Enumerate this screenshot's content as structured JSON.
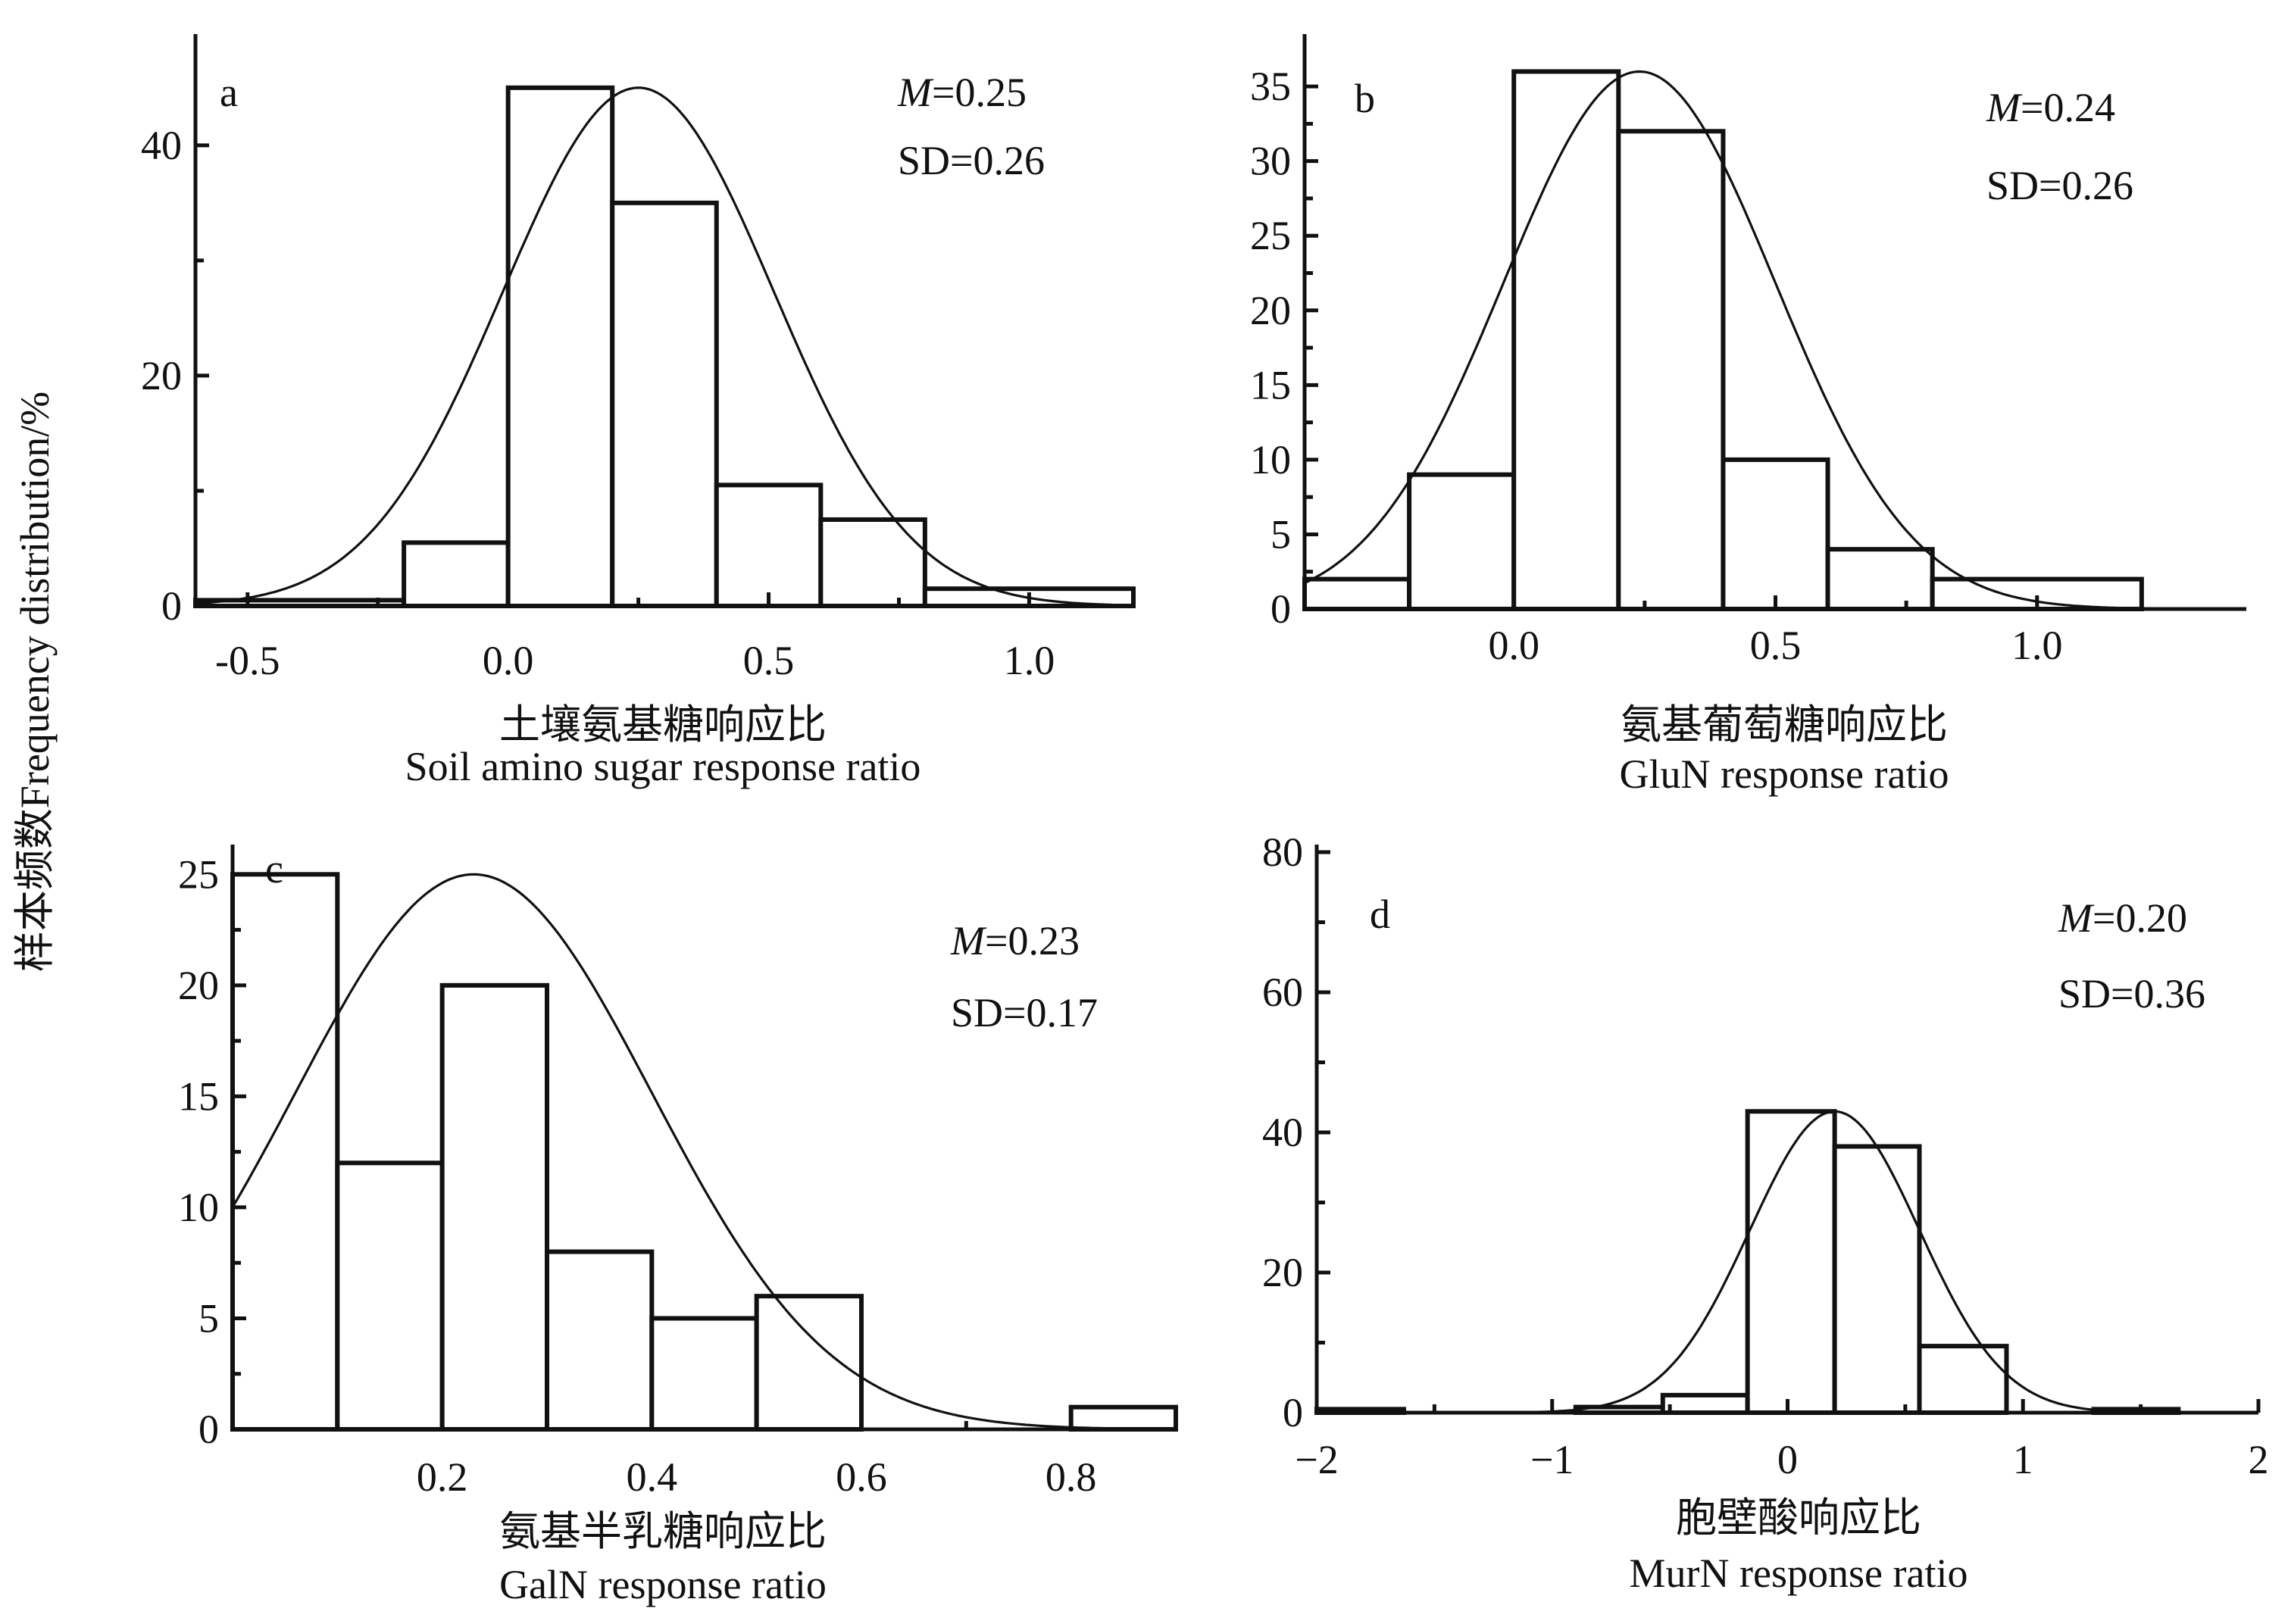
{
  "y_axis_label": "样本频数Frequency distribution/%",
  "chart_data": [
    {
      "id": "a",
      "type": "bar",
      "panel_letter": "a",
      "mean_prefix": "M",
      "mean_value": "=0.25",
      "sd_text": "SD=0.26",
      "xlabel_cn": "土壤氨基糖响应比",
      "xlabel_en": "Soil amino sugar response ratio",
      "xlim": [
        -0.6,
        1.2
      ],
      "ylim": [
        0,
        49
      ],
      "xticks": [
        -0.5,
        0.0,
        0.5,
        1.0
      ],
      "xtick_labels": [
        "-0.5",
        "0.0",
        "0.5",
        "1.0"
      ],
      "yticks": [
        0,
        20,
        40
      ],
      "ytick_labels": [
        "0",
        "20",
        "40"
      ],
      "bins": [
        [
          -0.6,
          -0.2
        ],
        [
          -0.2,
          0.0
        ],
        [
          0.0,
          0.2
        ],
        [
          0.2,
          0.4
        ],
        [
          0.4,
          0.6
        ],
        [
          0.6,
          0.8
        ],
        [
          0.8,
          1.2
        ]
      ],
      "values": [
        0.5,
        5.5,
        45,
        35,
        10.5,
        7.5,
        1.5
      ],
      "normal_peak": 45,
      "mean": 0.25,
      "sd": 0.26
    },
    {
      "id": "b",
      "type": "bar",
      "panel_letter": "b",
      "mean_prefix": "M",
      "mean_value": "=0.24",
      "sd_text": "SD=0.26",
      "xlabel_cn": "氨基葡萄糖响应比",
      "xlabel_en": "GluN response ratio",
      "xlim": [
        -0.4,
        1.4
      ],
      "ylim": [
        0,
        38
      ],
      "xticks": [
        0.0,
        0.5,
        1.0
      ],
      "xtick_labels": [
        "0.0",
        "0.5",
        "1.0"
      ],
      "yticks": [
        0,
        5,
        10,
        15,
        20,
        25,
        30,
        35
      ],
      "ytick_labels": [
        "0",
        "5",
        "10",
        "15",
        "20",
        "25",
        "30",
        "35"
      ],
      "bins": [
        [
          -0.4,
          -0.2
        ],
        [
          -0.2,
          0.0
        ],
        [
          0.0,
          0.2
        ],
        [
          0.2,
          0.4
        ],
        [
          0.4,
          0.6
        ],
        [
          0.6,
          0.8
        ],
        [
          0.8,
          1.2
        ]
      ],
      "values": [
        2,
        9,
        36,
        32,
        10,
        4,
        2
      ],
      "normal_peak": 36,
      "mean": 0.24,
      "sd": 0.26
    },
    {
      "id": "c",
      "type": "bar",
      "panel_letter": "c",
      "mean_prefix": "M",
      "mean_value": "=0.23",
      "sd_text": "SD=0.17",
      "xlabel_cn": "氨基半乳糖响应比",
      "xlabel_en": "GalN response ratio",
      "xlim": [
        0.0,
        0.9
      ],
      "ylim": [
        0,
        26
      ],
      "xticks": [
        0.2,
        0.4,
        0.6,
        0.8
      ],
      "xtick_labels": [
        "0.2",
        "0.4",
        "0.6",
        "0.8"
      ],
      "yticks": [
        0,
        5,
        10,
        15,
        20,
        25
      ],
      "ytick_labels": [
        "0",
        "5",
        "10",
        "15",
        "20",
        "25"
      ],
      "bins": [
        [
          0.0,
          0.1
        ],
        [
          0.1,
          0.2
        ],
        [
          0.2,
          0.3
        ],
        [
          0.3,
          0.4
        ],
        [
          0.4,
          0.5
        ],
        [
          0.5,
          0.6
        ],
        [
          0.8,
          0.9
        ]
      ],
      "values": [
        25,
        12,
        20,
        8,
        5,
        6,
        1
      ],
      "normal_peak": 25,
      "mean": 0.23,
      "sd": 0.17
    },
    {
      "id": "d",
      "type": "bar",
      "panel_letter": "d",
      "mean_prefix": "M",
      "mean_value": "=0.20",
      "sd_text": "SD=0.36",
      "xlabel_cn": "胞壁酸响应比",
      "xlabel_en": "MurN response ratio",
      "xlim": [
        -2,
        2
      ],
      "ylim": [
        0,
        80
      ],
      "xticks": [
        -2,
        -1,
        0,
        1,
        2
      ],
      "xtick_labels": [
        "−2",
        "−1",
        "0",
        "1",
        "2"
      ],
      "yticks": [
        0,
        20,
        40,
        60,
        80
      ],
      "ytick_labels": [
        "0",
        "20",
        "40",
        "60",
        "80"
      ],
      "bins": [
        [
          -2.0,
          -1.63
        ],
        [
          -0.9,
          -0.53
        ],
        [
          -0.53,
          -0.17
        ],
        [
          -0.17,
          0.2
        ],
        [
          0.2,
          0.56
        ],
        [
          0.56,
          0.93
        ],
        [
          1.3,
          1.66
        ]
      ],
      "values": [
        0.5,
        0.8,
        2.5,
        43,
        38,
        9.5,
        0.5
      ],
      "normal_peak": 43,
      "mean": 0.2,
      "sd": 0.36
    }
  ]
}
